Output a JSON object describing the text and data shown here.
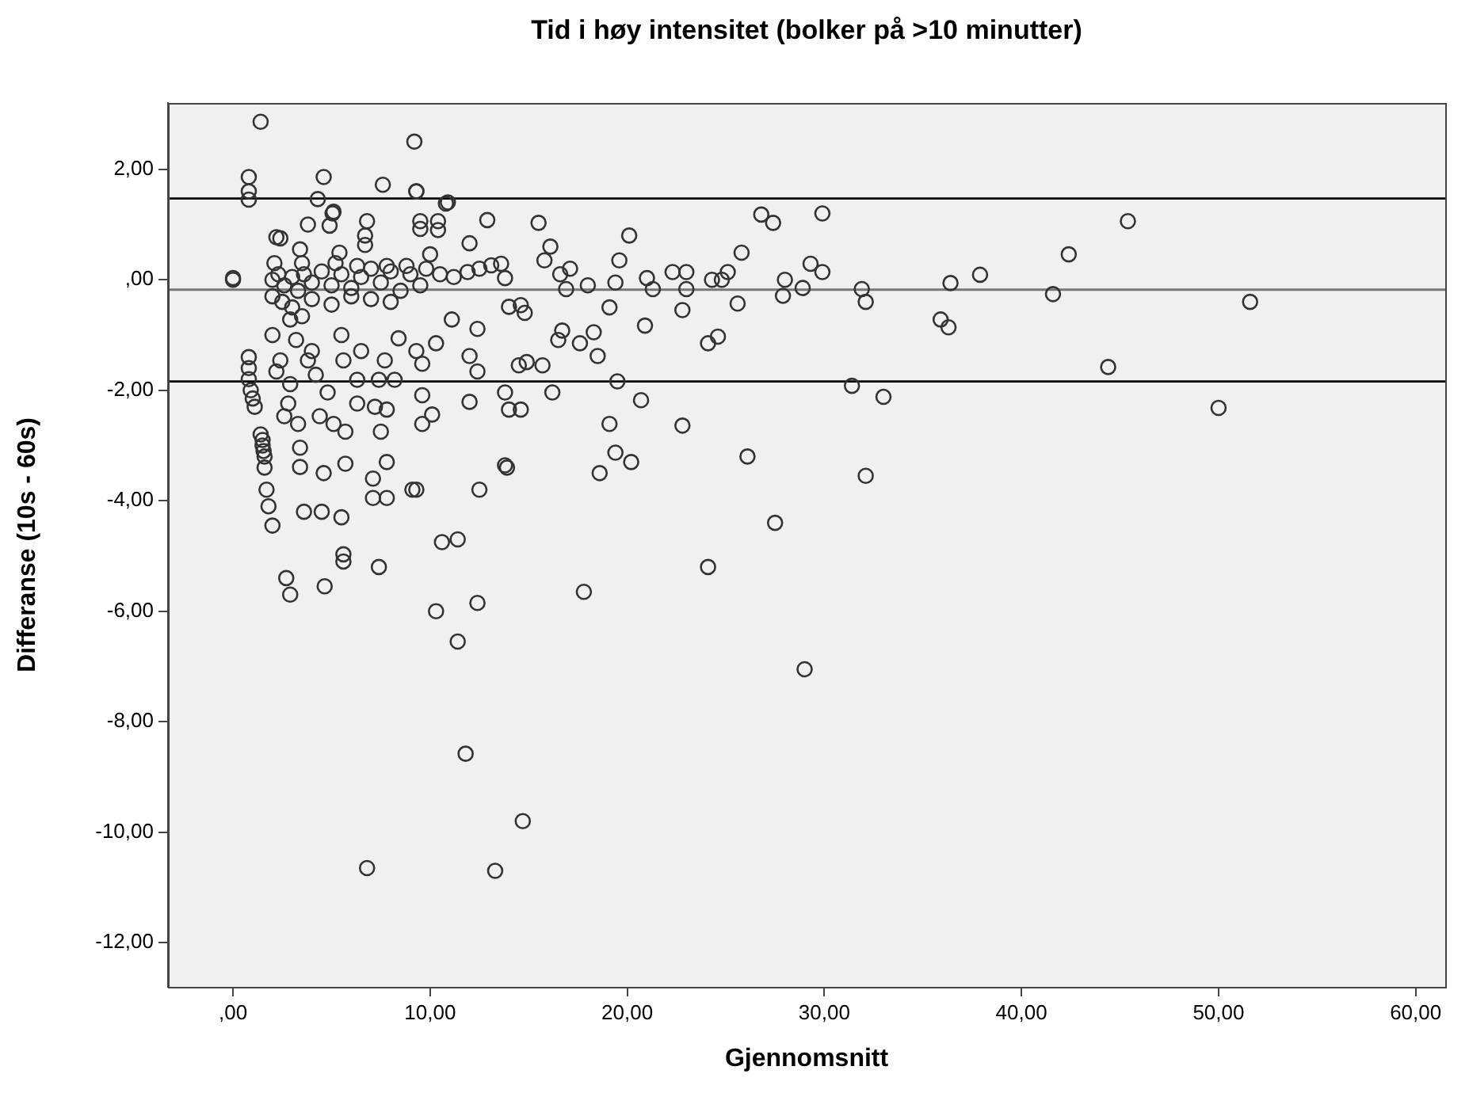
{
  "chart_data": {
    "type": "scatter",
    "title": "Tid i høy intensitet (bolker på >10 minutter)",
    "xlabel": "Gjennomsnitt",
    "ylabel": "Differanse (10s - 60s)",
    "xlim": [
      -3.3,
      61.5
    ],
    "ylim": [
      -12.8,
      3.2
    ],
    "xticks": [
      {
        "value": 0,
        "label": ",00"
      },
      {
        "value": 10,
        "label": "10,00"
      },
      {
        "value": 20,
        "label": "20,00"
      },
      {
        "value": 30,
        "label": "30,00"
      },
      {
        "value": 40,
        "label": "40,00"
      },
      {
        "value": 50,
        "label": "50,00"
      },
      {
        "value": 60,
        "label": "60,00"
      }
    ],
    "yticks": [
      {
        "value": -12,
        "label": "-12,00"
      },
      {
        "value": -10,
        "label": "-10,00"
      },
      {
        "value": -8,
        "label": "-8,00"
      },
      {
        "value": -6,
        "label": "-6,00"
      },
      {
        "value": -4,
        "label": "-4,00"
      },
      {
        "value": -2,
        "label": "-2,00"
      },
      {
        "value": 0,
        "label": ",00"
      },
      {
        "value": 2,
        "label": "2,00"
      }
    ],
    "legend": false,
    "marker": "circle",
    "ref_lines": [
      {
        "axis": "y",
        "value": 1.47,
        "color": "#000000"
      },
      {
        "axis": "y",
        "value": -0.18,
        "color": "#777777"
      },
      {
        "axis": "y",
        "value": -1.84,
        "color": "#000000"
      }
    ],
    "series": [
      {
        "color": "#333333",
        "x": [
          1.4,
          0.8,
          0.8,
          0.8,
          0,
          0,
          9.2,
          4.6,
          7.6,
          9.3,
          4.3,
          5.05,
          3.8,
          10.9,
          10.4,
          9.5,
          6.8,
          2.2,
          0.8,
          0.8,
          0.8,
          0.9,
          1.0,
          1.1,
          1.4,
          1.5,
          1.6,
          1.7,
          1.8,
          2.0,
          2.7,
          2.9,
          3.6,
          4.5,
          5.5,
          4.65,
          5.6,
          5.6,
          7.4,
          7.1,
          7.8,
          7.1,
          9.1,
          9.3,
          10.6,
          11.4,
          10.3,
          11.4,
          11.8,
          6.8,
          13.9,
          12.5,
          18.6,
          20.2,
          24.1,
          17.8,
          12.4,
          27.5,
          32.1,
          29.0,
          14.7,
          13.3,
          26.1,
          12.9,
          15.5,
          12.0,
          20.1,
          16.1,
          15.8,
          19.6,
          16.6,
          18.0,
          19.4,
          21.0,
          22.3,
          23.0,
          21.3,
          23.0,
          24.3,
          24.8,
          25.1,
          25.8,
          26.8,
          27.4,
          29.9,
          29.3,
          29.9,
          28.0,
          27.9,
          28.9,
          31.9,
          32.1,
          36.4,
          35.9,
          36.3,
          25.6,
          22.8,
          19.1,
          20.9,
          24.1,
          24.6,
          31.4,
          33.0,
          20.7,
          19.1,
          22.8,
          19.4,
          13.8,
          14.0,
          14.6,
          14.8,
          12.4,
          16.5,
          16.7,
          17.6,
          18.3,
          18.5,
          12.0,
          12.4,
          14.5,
          14.9,
          15.7,
          13.8,
          16.2,
          12.0,
          14.0,
          14.6,
          19.5,
          12.5,
          13.1,
          13.6,
          11.9,
          13.8,
          17.1,
          16.9,
          45.4,
          42.4,
          37.9,
          41.6,
          51.6,
          44.4,
          50.0,
          9.3,
          10.8,
          5.1,
          4.9,
          9.5,
          10.4,
          2.4,
          6.7,
          6.7,
          10.0,
          3.4,
          5.4,
          11.1,
          2.0,
          2.3,
          2.6,
          3.0,
          3.3,
          3.6,
          4.0,
          4.5,
          5.0,
          5.5,
          6.0,
          6.5,
          7.0,
          7.5,
          8.0,
          8.5,
          9.0,
          9.5,
          2.0,
          2.5,
          3.0,
          4.0,
          5.0,
          6.0,
          7.0,
          8.0,
          2.1,
          3.5,
          5.2,
          6.3,
          7.8,
          8.8,
          9.8,
          10.5,
          11.2,
          2.0,
          2.9,
          3.5,
          3.2,
          4.0,
          2.4,
          2.2,
          3.8,
          5.5,
          5.6,
          6.5,
          7.7,
          8.4,
          9.3,
          10.3,
          9.6,
          2.9,
          4.2,
          4.8,
          6.3,
          7.4,
          8.2,
          2.8,
          2.6,
          3.3,
          4.4,
          5.1,
          5.7,
          6.3,
          7.2,
          7.8,
          7.5,
          9.6,
          9.6,
          10.1,
          3.4,
          3.4,
          4.6,
          5.7,
          7.8,
          1.5,
          1.55,
          1.6
        ],
        "values": [
          2.86,
          1.86,
          1.6,
          1.45,
          0,
          0.03,
          2.5,
          1.86,
          1.72,
          1.6,
          1.46,
          1.2,
          1.0,
          1.4,
          0.9,
          1.06,
          1.06,
          0.77,
          -1.4,
          -1.6,
          -1.8,
          -2.0,
          -2.15,
          -2.3,
          -2.8,
          -3.0,
          -3.2,
          -3.8,
          -4.1,
          -4.45,
          -5.4,
          -5.7,
          -4.2,
          -4.2,
          -4.3,
          -5.55,
          -4.97,
          -5.1,
          -5.2,
          -3.6,
          -3.95,
          -3.95,
          -3.8,
          -3.8,
          -4.75,
          -4.7,
          -6.0,
          -6.55,
          -8.58,
          -10.65,
          -3.4,
          -3.8,
          -3.5,
          -3.3,
          -5.2,
          -5.65,
          -5.85,
          -4.4,
          -3.55,
          -7.05,
          -9.8,
          -10.7,
          -3.2,
          1.08,
          1.03,
          0.66,
          0.8,
          0.6,
          0.35,
          0.35,
          0.1,
          -0.1,
          -0.05,
          0.03,
          0.14,
          0.14,
          -0.17,
          -0.17,
          0,
          0,
          0.14,
          0.49,
          1.18,
          1.03,
          1.2,
          0.29,
          0.14,
          0,
          -0.29,
          -0.15,
          -0.17,
          -0.4,
          -0.06,
          -0.72,
          -0.86,
          -0.43,
          -0.55,
          -0.5,
          -0.83,
          -1.15,
          -1.03,
          -1.92,
          -2.12,
          -2.18,
          -2.61,
          -2.64,
          -3.13,
          -3.36,
          -0.49,
          -0.46,
          -0.6,
          -0.89,
          -1.09,
          -0.92,
          -1.15,
          -0.95,
          -1.38,
          -1.38,
          -1.66,
          -1.55,
          -1.49,
          -1.55,
          -2.04,
          -2.04,
          -2.21,
          -2.35,
          -2.35,
          -1.84,
          0.2,
          0.26,
          0.29,
          0.14,
          0.03,
          0.2,
          -0.17,
          1.06,
          0.46,
          0.09,
          -0.26,
          -0.4,
          -1.58,
          -2.32,
          1.6,
          1.38,
          1.23,
          0.98,
          0.92,
          1.06,
          0.75,
          0.8,
          0.63,
          0.46,
          0.55,
          0.49,
          -0.72,
          0,
          0.1,
          -0.1,
          0.05,
          -0.2,
          0.1,
          -0.05,
          0.15,
          -0.1,
          0.1,
          -0.15,
          0.05,
          0.2,
          -0.05,
          0.15,
          -0.2,
          0.1,
          -0.1,
          -0.3,
          -0.4,
          -0.5,
          -0.35,
          -0.45,
          -0.3,
          -0.35,
          -0.4,
          0.3,
          0.3,
          0.3,
          0.25,
          0.25,
          0.25,
          0.2,
          0.1,
          0.05,
          -1.0,
          -0.72,
          -0.66,
          -1.09,
          -1.29,
          -1.46,
          -1.66,
          -1.46,
          -1.0,
          -1.46,
          -1.29,
          -1.46,
          -1.06,
          -1.29,
          -1.15,
          -1.52,
          -1.89,
          -1.72,
          -2.04,
          -1.81,
          -1.81,
          -1.81,
          -2.24,
          -2.47,
          -2.61,
          -2.47,
          -2.61,
          -2.75,
          -2.24,
          -2.3,
          -2.35,
          -2.75,
          -2.09,
          -2.61,
          -2.44,
          -3.04,
          -3.39,
          -3.5,
          -3.33,
          -3.3,
          -2.9,
          -3.1,
          -3.4
        ]
      }
    ]
  }
}
